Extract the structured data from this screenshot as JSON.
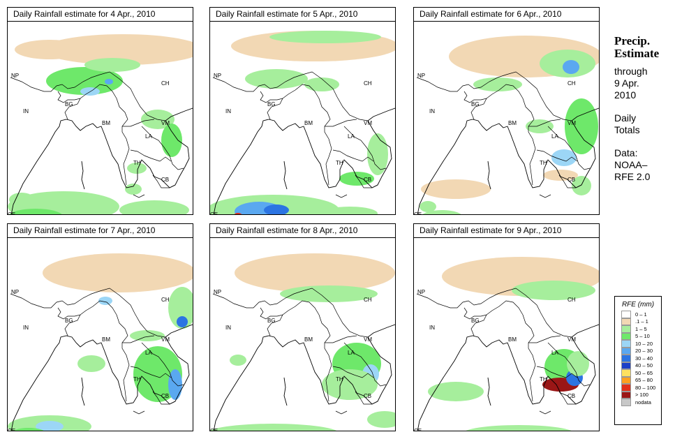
{
  "panels": [
    {
      "title": "Daily Rainfall estimate for  4 Apr., 2010",
      "rain": "d4"
    },
    {
      "title": "Daily Rainfall estimate for  5 Apr., 2010",
      "rain": "d5"
    },
    {
      "title": "Daily Rainfall estimate for  6 Apr., 2010",
      "rain": "d6"
    },
    {
      "title": "Daily Rainfall estimate for  7 Apr., 2010",
      "rain": "d7"
    },
    {
      "title": "Daily Rainfall estimate for  8 Apr., 2010",
      "rain": "d8"
    },
    {
      "title": "Daily Rainfall estimate for  9 Apr., 2010",
      "rain": "d9"
    }
  ],
  "map_labels": [
    "NP",
    "CH",
    "IN",
    "BG",
    "BM",
    "VM",
    "LA",
    "TH",
    "CB",
    "CE"
  ],
  "side": {
    "heading_1": "Precip.",
    "heading_2": "Estimate",
    "line_1": "through",
    "line_2": "9 Apr.",
    "line_3": "2010",
    "line_4": "Daily",
    "line_5": "Totals",
    "line_6": "Data:",
    "line_7": "NOAA–",
    "line_8": "RFE 2.0"
  },
  "legend": {
    "title": "RFE (mm)",
    "items": [
      {
        "label": "0 – 1",
        "color": "#ffffff"
      },
      {
        "label": ".1 – 1",
        "color": "#f2d8b4"
      },
      {
        "label": "1 – 5",
        "color": "#a6ee9c"
      },
      {
        "label": "5 – 10",
        "color": "#6ee86a"
      },
      {
        "label": "10 – 20",
        "color": "#9cd6f6"
      },
      {
        "label": "20 – 30",
        "color": "#5aa8f0"
      },
      {
        "label": "30 – 40",
        "color": "#2c74e2"
      },
      {
        "label": "40 – 50",
        "color": "#1c3fc8"
      },
      {
        "label": "50 – 65",
        "color": "#fee160"
      },
      {
        "label": "65 – 80",
        "color": "#fea020"
      },
      {
        "label": "80 – 100",
        "color": "#e2301a"
      },
      {
        "label": "> 100",
        "color": "#9a1616"
      },
      {
        "label": "nodata",
        "color": "#c8c8c8"
      }
    ]
  }
}
